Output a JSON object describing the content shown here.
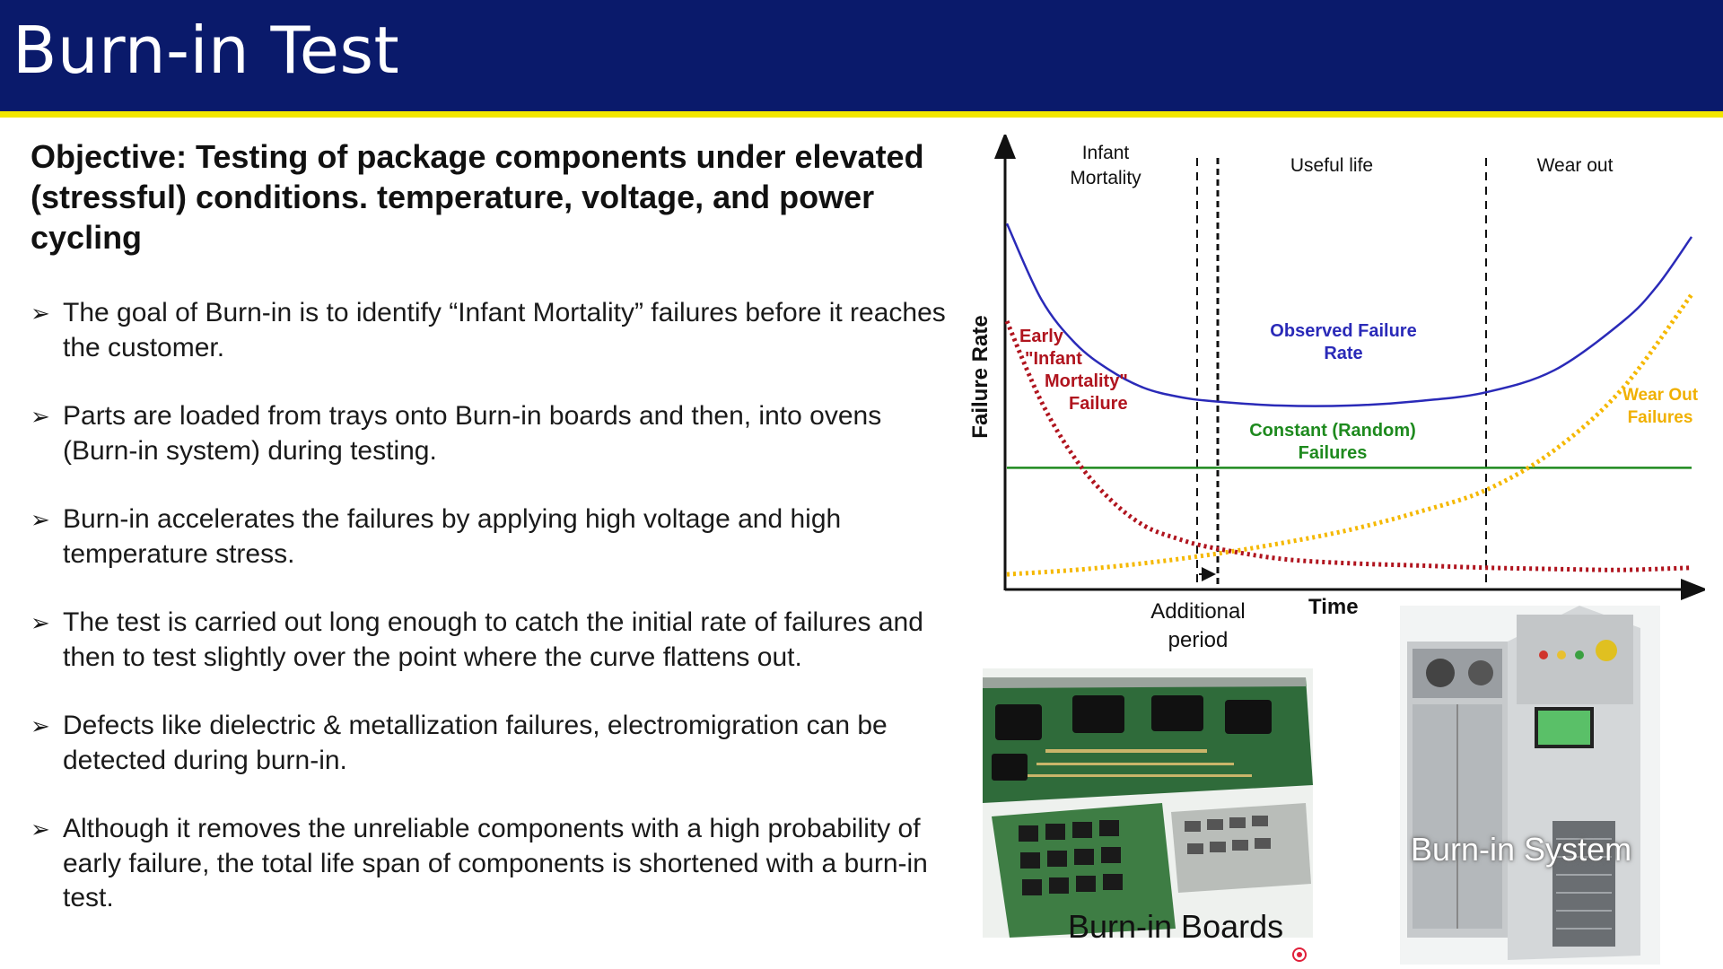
{
  "slide": {
    "title": "Burn-in Test",
    "objective": "Objective: Testing of package components under elevated (stressful) conditions. temperature, voltage, and power cycling",
    "bullet_marker": "➢",
    "bullets": [
      "The goal of Burn-in is to identify “Infant Mortality” failures before it reaches the customer.",
      "Parts are loaded from trays onto Burn-in boards and then, into ovens (Burn-in system) during testing.",
      "Burn-in accelerates the failures by applying high voltage and high temperature stress.",
      "The test is carried out long enough to catch the initial rate of failures and then to test slightly over the point where the curve flattens out.",
      "Defects like dielectric & metallization failures, electromigration can be detected during burn-in.",
      "Although it removes the unreliable components with a high probability of early failure, the total life span of components is shortened with a burn-in test."
    ],
    "colors": {
      "header_bg": "#0a1a6b",
      "header_stripe": "#f2e600",
      "observed": "#2a2ab8",
      "constant": "#1e8a1e",
      "infant": "#b0141e",
      "wearout": "#f5b800"
    }
  },
  "chart": {
    "ylabel": "Failure Rate",
    "xlabel": "Time",
    "regions": {
      "infant_line1": "Infant",
      "infant_line2": "Mortality",
      "useful": "Useful life",
      "wearout": "Wear out"
    },
    "additional_period_line1": "Additional",
    "additional_period_line2": "period",
    "labels": {
      "observed_line1": "Observed Failure",
      "observed_line2": "Rate",
      "constant_line1": "Constant (Random)",
      "constant_line2": "Failures",
      "infant_line1": "Early",
      "infant_line2": "\"Infant",
      "infant_line3": "Mortality\"",
      "infant_line4": "Failure",
      "wear_line1": "Wear Out",
      "wear_line2": "Failures"
    }
  },
  "chart_data": {
    "type": "line",
    "xlabel": "Time",
    "ylabel": "Failure Rate",
    "regions": [
      "Infant Mortality",
      "Useful life",
      "Wear out"
    ],
    "series": [
      {
        "name": "Observed Failure Rate",
        "x": [
          0,
          5,
          10,
          15,
          20,
          25,
          30,
          40,
          50,
          60,
          70,
          80,
          90,
          95,
          100
        ],
        "values": [
          0.82,
          0.65,
          0.55,
          0.49,
          0.45,
          0.43,
          0.42,
          0.41,
          0.41,
          0.42,
          0.44,
          0.49,
          0.6,
          0.68,
          0.79
        ]
      },
      {
        "name": "Constant (Random) Failures",
        "x": [
          0,
          100
        ],
        "values": [
          0.27,
          0.27
        ]
      },
      {
        "name": "Early \"Infant Mortality\" Failure",
        "x": [
          0,
          5,
          10,
          15,
          20,
          25,
          30,
          40,
          50,
          60,
          70,
          80,
          90,
          100
        ],
        "values": [
          0.6,
          0.42,
          0.29,
          0.2,
          0.14,
          0.11,
          0.09,
          0.065,
          0.055,
          0.05,
          0.045,
          0.042,
          0.04,
          0.045
        ]
      },
      {
        "name": "Wear Out Failures",
        "x": [
          0,
          10,
          20,
          30,
          40,
          50,
          60,
          70,
          80,
          90,
          100
        ],
        "values": [
          0.03,
          0.04,
          0.055,
          0.075,
          0.1,
          0.13,
          0.17,
          0.22,
          0.31,
          0.45,
          0.66
        ]
      }
    ]
  },
  "photos": {
    "boards_label": "Burn-in Boards",
    "system_label": "Burn-in System"
  }
}
